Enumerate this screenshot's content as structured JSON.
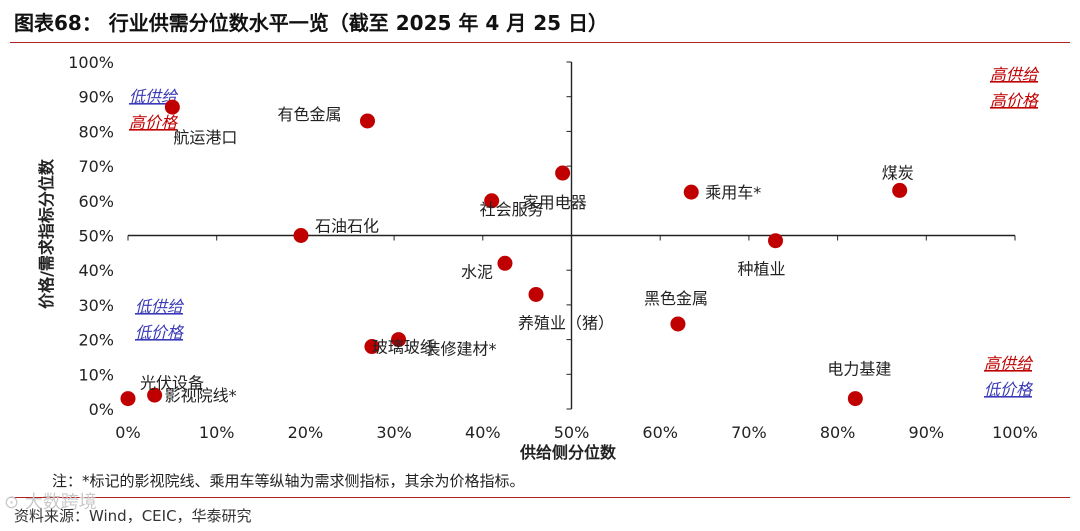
{
  "header": {
    "title": "图表68：  行业供需分位数水平一览（截至 2025 年 4 月 25 日）"
  },
  "chart_data": {
    "type": "scatter",
    "xlabel": "供给侧分位数",
    "ylabel": "价格/需求指标分位数",
    "xlim": [
      0,
      100
    ],
    "ylim": [
      0,
      100
    ],
    "x_ticks": [
      "0%",
      "10%",
      "20%",
      "30%",
      "40%",
      "50%",
      "60%",
      "70%",
      "80%",
      "90%",
      "100%"
    ],
    "y_ticks": [
      "0%",
      "10%",
      "20%",
      "30%",
      "40%",
      "50%",
      "60%",
      "70%",
      "80%",
      "90%",
      "100%"
    ],
    "grid": false,
    "point_color": "#c00000",
    "points": [
      {
        "label": "航运港口",
        "x": 5,
        "y": 87
      },
      {
        "label": "有色金属",
        "x": 27,
        "y": 83
      },
      {
        "label": "家用电器",
        "x": 49,
        "y": 68
      },
      {
        "label": "社会服务",
        "x": 41,
        "y": 60
      },
      {
        "label": "乘用车*",
        "x": 63.5,
        "y": 62.5
      },
      {
        "label": "煤炭",
        "x": 87,
        "y": 63
      },
      {
        "label": "石油石化",
        "x": 19.5,
        "y": 50
      },
      {
        "label": "种植业",
        "x": 73,
        "y": 48.5
      },
      {
        "label": "水泥",
        "x": 42.5,
        "y": 42
      },
      {
        "label": "养殖业（猪）",
        "x": 46,
        "y": 33
      },
      {
        "label": "黑色金属",
        "x": 62,
        "y": 24.5
      },
      {
        "label": "玻璃玻纤",
        "x": 27.5,
        "y": 18
      },
      {
        "label": "装修建材*",
        "x": 30.5,
        "y": 20
      },
      {
        "label": "光伏设备",
        "x": 0,
        "y": 3
      },
      {
        "label": "影视院线*",
        "x": 3,
        "y": 4
      },
      {
        "label": "电力基建",
        "x": 82,
        "y": 3
      }
    ],
    "quadrant_labels": [
      {
        "line1": "低供给",
        "line2": "高价格",
        "color1": "#3a3ab8",
        "color2": "#c00000"
      },
      {
        "line1": "高供给",
        "line2": "高价格",
        "color1": "#c00000",
        "color2": "#c00000"
      },
      {
        "line1": "低供给",
        "line2": "低价格",
        "color1": "#3a3ab8",
        "color2": "#3a3ab8"
      },
      {
        "line1": "高供给",
        "line2": "低价格",
        "color1": "#c00000",
        "color2": "#3a3ab8"
      }
    ]
  },
  "footer": {
    "note": "注：*标记的影视院线、乘用车等纵轴为需求侧指标，其余为价格指标。",
    "source": "资料来源：Wind，CEIC，华泰研究",
    "watermark": "⊙ 大数跨境"
  }
}
